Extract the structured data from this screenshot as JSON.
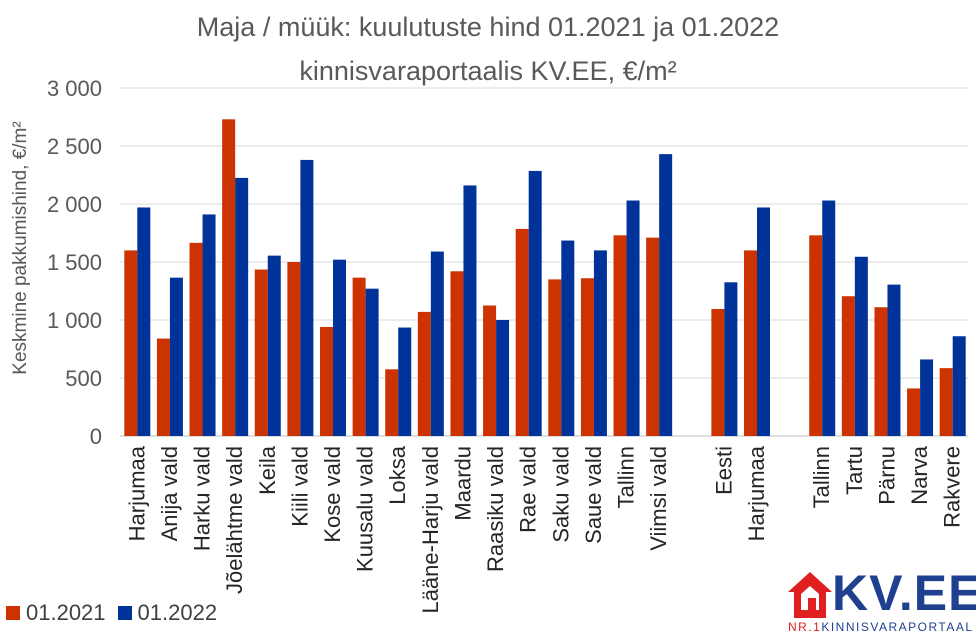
{
  "chart_data": {
    "type": "bar",
    "title": "Maja / müük: kuulutuste hind 01.2021 ja 01.2022",
    "subtitle": "kinnisvaraportaalis KV.EE, €/m²",
    "ylabel": "Keskmine pakkumishind, €/m²",
    "xlabel": "",
    "ylim": [
      0,
      3000
    ],
    "yticks": [
      0,
      500,
      1000,
      1500,
      2000,
      2500,
      3000
    ],
    "ytick_labels": [
      "0",
      "500",
      "1 000",
      "1 500",
      "2 000",
      "2 500",
      "3 000"
    ],
    "grid": true,
    "legend_position": "bottom-left",
    "categories": [
      "Harjumaa",
      "Anija vald",
      "Harku vald",
      "Jõelähtme vald",
      "Keila",
      "Kiili vald",
      "Kose vald",
      "Kuusalu vald",
      "Loksa",
      "Lääne-Harju vald",
      "Maardu",
      "Raasiku vald",
      "Rae vald",
      "Saku vald",
      "Saue vald",
      "Tallinn",
      "Viimsi vald",
      "",
      "Eesti",
      "Harjumaa",
      "",
      "Tallinn",
      "Tartu",
      "Pärnu",
      "Narva",
      "Rakvere"
    ],
    "series": [
      {
        "name": "01.2021",
        "color": "#cc3300",
        "values": [
          1600,
          840,
          1665,
          2730,
          1435,
          1500,
          940,
          1365,
          575,
          1070,
          1420,
          1125,
          1785,
          1350,
          1360,
          1730,
          1710,
          null,
          1095,
          1600,
          null,
          1730,
          1205,
          1110,
          410,
          585
        ]
      },
      {
        "name": "01.2022",
        "color": "#003399",
        "values": [
          1970,
          1365,
          1910,
          2225,
          1555,
          2380,
          1520,
          1270,
          935,
          1590,
          2160,
          1000,
          2285,
          1685,
          1600,
          2030,
          2430,
          null,
          1325,
          1970,
          null,
          2030,
          1545,
          1305,
          660,
          860
        ]
      }
    ]
  },
  "logo": {
    "text": "KV.EE",
    "tagline_prefix": "NR.1",
    "tagline": "KINNISVARAPORTAAL"
  }
}
